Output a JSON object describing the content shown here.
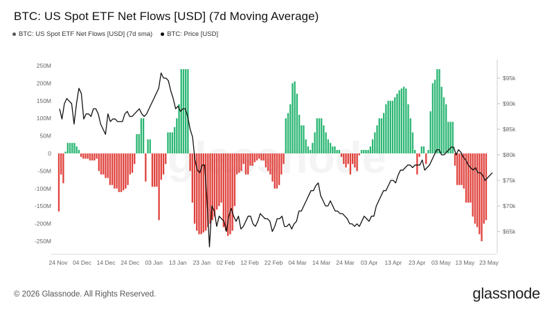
{
  "header": {
    "title": "BTC: US Spot ETF Net Flows [USD] (7d Moving Average)"
  },
  "legend": {
    "items": [
      {
        "label": "BTC: US Spot ETF Net Flows [USD] (7d sma)",
        "color": "#555555"
      },
      {
        "label": "BTC: Price [USD]",
        "color": "#000000"
      }
    ]
  },
  "watermark": "glassnode",
  "footer": {
    "copyright": "© 2026 Glassnode. All Rights Reserved.",
    "brand": "glassnode"
  },
  "colors": {
    "positive": "#2bb673",
    "negative": "#e0413c",
    "price": "#111111",
    "grid": "#e6e6e6"
  },
  "chart_data": {
    "type": "bar",
    "title": "BTC: US Spot ETF Net Flows [USD] (7d Moving Average)",
    "x_tick_labels": [
      "24 Nov",
      "04 Dec",
      "14 Dec",
      "24 Dec",
      "03 Jan",
      "13 Jan",
      "23 Jan",
      "02 Feb",
      "12 Feb",
      "22 Feb",
      "04 Mar",
      "14 Mar",
      "24 Mar",
      "03 Apr",
      "13 Apr",
      "23 Apr",
      "03 May",
      "13 May",
      "23 May"
    ],
    "left_axis": {
      "ticks": [
        "250M",
        "200M",
        "150M",
        "100M",
        "50M",
        "0",
        "-50M",
        "-100M",
        "-150M",
        "-200M",
        "-250M"
      ],
      "ylim": [
        -270,
        250
      ],
      "unit": "M USD"
    },
    "right_axis": {
      "ticks": [
        "$95k",
        "$90k",
        "$85k",
        "$80k",
        "$75k",
        "$70k",
        "$65k"
      ],
      "ylim": [
        61,
        97
      ],
      "unit": "k USD"
    },
    "series": [
      {
        "name": "BTC: US Spot ETF Net Flows [USD] (7d sma)",
        "axis": "left",
        "values": [
          -165,
          -60,
          -85,
          5,
          30,
          30,
          30,
          30,
          20,
          10,
          -10,
          -15,
          -15,
          -15,
          -20,
          -20,
          -20,
          -15,
          -50,
          -60,
          -60,
          -70,
          -70,
          -90,
          -90,
          -100,
          -100,
          -110,
          -110,
          -105,
          -100,
          -90,
          -60,
          -55,
          -30,
          55,
          55,
          100,
          100,
          -80,
          40,
          40,
          -95,
          -95,
          -95,
          -190,
          -75,
          -60,
          -30,
          60,
          60,
          60,
          75,
          100,
          140,
          240,
          240,
          240,
          240,
          -50,
          -140,
          -200,
          -220,
          -230,
          -230,
          -225,
          -220,
          -210,
          -200,
          -190,
          -180,
          -160,
          -150,
          -140,
          -210,
          -220,
          -235,
          -230,
          -220,
          -150,
          -60,
          -55,
          -50,
          -30,
          -60,
          -60,
          -35,
          -35,
          -25,
          -20,
          -15,
          -20,
          -20,
          -40,
          -50,
          -60,
          -80,
          -100,
          -100,
          -90,
          -60,
          -30,
          100,
          115,
          140,
          200,
          205,
          170,
          110,
          80,
          80,
          40,
          20,
          10,
          30,
          60,
          100,
          100,
          100,
          80,
          60,
          40,
          30,
          20,
          20,
          10,
          10,
          -10,
          -30,
          -40,
          -30,
          -60,
          -30,
          -40,
          -50,
          -5,
          10,
          10,
          10,
          10,
          20,
          40,
          60,
          80,
          100,
          100,
          115,
          140,
          150,
          150,
          150,
          160,
          170,
          180,
          185,
          190,
          185,
          140,
          100,
          60,
          10,
          -60,
          -10,
          20,
          20,
          -30,
          10,
          120,
          200,
          210,
          240,
          240,
          190,
          160,
          140,
          90,
          90,
          90,
          -35,
          -90,
          -90,
          -90,
          -100,
          -140,
          -140,
          -140,
          -180,
          -200,
          -210,
          -230,
          -250,
          -200,
          -190
        ]
      },
      {
        "name": "BTC: Price [USD]",
        "axis": "right",
        "values": [
          89,
          87,
          90,
          91,
          90.5,
          90,
          86,
          90,
          93,
          92,
          87,
          88,
          88,
          87.5,
          89,
          89,
          88,
          86,
          85,
          84,
          88,
          86.5,
          87,
          87,
          86.5,
          86.5,
          86.5,
          88,
          88.5,
          87.5,
          87.5,
          88,
          88.5,
          89,
          88,
          87.5,
          88,
          89,
          90,
          91,
          92,
          93,
          96,
          95,
          95,
          94.5,
          92.5,
          91,
          89,
          89.5,
          88.5,
          89,
          89,
          87.5,
          85,
          83.5,
          79,
          77,
          76.5,
          78,
          78,
          71,
          62,
          70,
          69,
          66,
          68,
          67.5,
          67,
          65,
          68,
          69.5,
          68,
          67,
          68,
          65.5,
          66,
          67,
          68,
          68,
          66.5,
          66,
          67,
          68.5,
          68,
          67.5,
          67.5,
          67,
          65,
          66,
          67.5,
          67.5,
          68,
          66,
          66,
          66.5,
          65.5,
          66.5,
          67,
          69,
          69,
          70,
          71,
          72,
          73,
          73,
          74,
          74.5,
          72,
          71,
          70,
          70,
          71,
          70,
          69,
          69,
          68.5,
          68.5,
          68,
          67.5,
          66.5,
          66.5,
          66,
          66.5,
          66,
          67,
          68,
          67.5,
          67,
          68,
          68,
          70,
          71,
          72,
          73,
          73,
          74,
          75,
          75,
          74.5,
          76,
          77,
          77,
          77.5,
          78,
          78,
          77.5,
          78,
          78,
          78,
          79,
          77,
          77.5,
          78,
          79,
          80,
          81,
          81,
          80,
          80,
          80.5,
          81,
          81.5,
          81.5,
          80,
          81,
          80.5,
          79.5,
          79,
          78,
          77.5,
          77,
          77.5,
          76.5,
          76.5,
          76,
          75,
          75.5,
          76,
          76.5
        ]
      }
    ],
    "grid": true,
    "watermark": "glassnode"
  }
}
